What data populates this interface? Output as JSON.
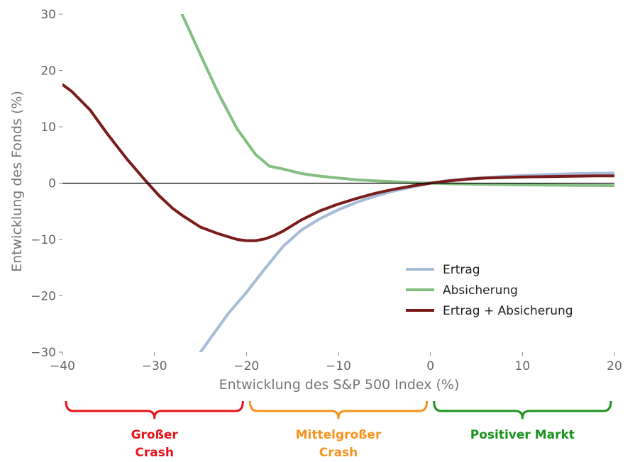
{
  "chart_data": {
    "type": "line",
    "xlabel": "Entwicklung des S&P 500 Index (%)",
    "ylabel": "Entwicklung des Fonds (%)",
    "xlim": [
      -40,
      20
    ],
    "ylim": [
      -30,
      30
    ],
    "xticks": [
      -40,
      -30,
      -20,
      -10,
      0,
      10,
      20
    ],
    "yticks": [
      -30,
      -20,
      -10,
      0,
      10,
      20,
      30
    ],
    "xtick_labels": [
      "−40",
      "−30",
      "−20",
      "−10",
      "0",
      "10",
      "20"
    ],
    "ytick_labels": [
      "−30",
      "−20",
      "−10",
      "0",
      "10",
      "20",
      "30"
    ],
    "zero_line": true,
    "grid": false,
    "legend_position": "bottom-right",
    "series": [
      {
        "name": "Ertrag",
        "color": "#a6bcd9",
        "x": [
          -25,
          -22,
          -20,
          -18,
          -16,
          -14,
          -12,
          -10,
          -8,
          -6,
          -4,
          -2,
          0,
          2,
          4,
          6,
          8,
          10,
          12,
          14,
          16,
          18,
          20
        ],
        "y": [
          -30,
          -23.2,
          -19.4,
          -15.2,
          -11.2,
          -8.3,
          -6.3,
          -4.7,
          -3.4,
          -2.3,
          -1.4,
          -0.7,
          0,
          0.5,
          0.8,
          1.0,
          1.2,
          1.35,
          1.5,
          1.6,
          1.7,
          1.75,
          1.8
        ]
      },
      {
        "name": "Absicherung",
        "color": "#82bf80",
        "x": [
          -27,
          -25,
          -23,
          -21,
          -19,
          -17.5,
          -16,
          -14,
          -12,
          -10,
          -8,
          -6,
          -4,
          -2,
          0,
          2,
          4,
          6,
          8,
          10,
          12,
          14,
          16,
          18,
          20
        ],
        "y": [
          30,
          22.8,
          15.8,
          9.6,
          5.1,
          3.0,
          2.5,
          1.7,
          1.25,
          0.9,
          0.6,
          0.4,
          0.25,
          0.1,
          0,
          -0.1,
          -0.15,
          -0.2,
          -0.25,
          -0.3,
          -0.33,
          -0.36,
          -0.4,
          -0.42,
          -0.45
        ]
      },
      {
        "name": "Ertrag + Absicherung",
        "color": "#7a1d1a",
        "x": [
          -40,
          -39,
          -37,
          -35,
          -33,
          -31,
          -29.5,
          -28,
          -27,
          -25,
          -23,
          -21,
          -20,
          -19,
          -18,
          -17,
          -16,
          -14,
          -12,
          -10,
          -8,
          -6,
          -4,
          -2,
          0,
          2,
          4,
          6,
          8,
          10,
          12,
          14,
          16,
          18,
          20
        ],
        "y": [
          17.5,
          16.3,
          13.0,
          8.5,
          4.3,
          0.5,
          -2.2,
          -4.5,
          -5.7,
          -7.8,
          -9.0,
          -10.0,
          -10.2,
          -10.2,
          -9.9,
          -9.3,
          -8.5,
          -6.5,
          -4.9,
          -3.7,
          -2.7,
          -1.8,
          -1.1,
          -0.5,
          0,
          0.4,
          0.7,
          0.9,
          1.0,
          1.1,
          1.15,
          1.2,
          1.25,
          1.28,
          1.3
        ]
      }
    ],
    "regions": [
      {
        "label": "Großer Crash",
        "x_from": -40,
        "x_to": -20,
        "color": "#e8131b"
      },
      {
        "label": "Mittelgroßer Crash",
        "x_from": -20,
        "x_to": 0,
        "color": "#f7941d"
      },
      {
        "label": "Positiver Markt",
        "x_from": 0,
        "x_to": 20,
        "color": "#1c931e"
      }
    ]
  }
}
